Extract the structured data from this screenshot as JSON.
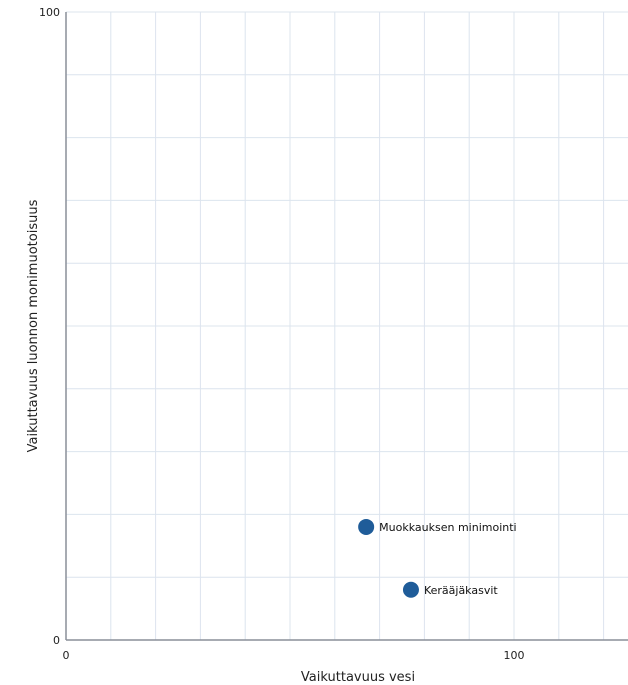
{
  "chart_data": {
    "type": "scatter",
    "xlabel": "Vaikuttavuus vesi",
    "ylabel": "Vaikuttavuus luonnon monimuotoisuus",
    "xlim": [
      0,
      125
    ],
    "ylim": [
      0,
      100
    ],
    "x_ticks": [
      0,
      100
    ],
    "y_ticks": [
      0,
      100
    ],
    "x_grid_step": 10,
    "y_grid_step": 10,
    "grid": true,
    "point_color": "#1f5c99",
    "points": [
      {
        "label": "Muokkauksen minimointi",
        "x": 67,
        "y": 18
      },
      {
        "label": "Kerääjäkasvit",
        "x": 77,
        "y": 8
      }
    ]
  }
}
